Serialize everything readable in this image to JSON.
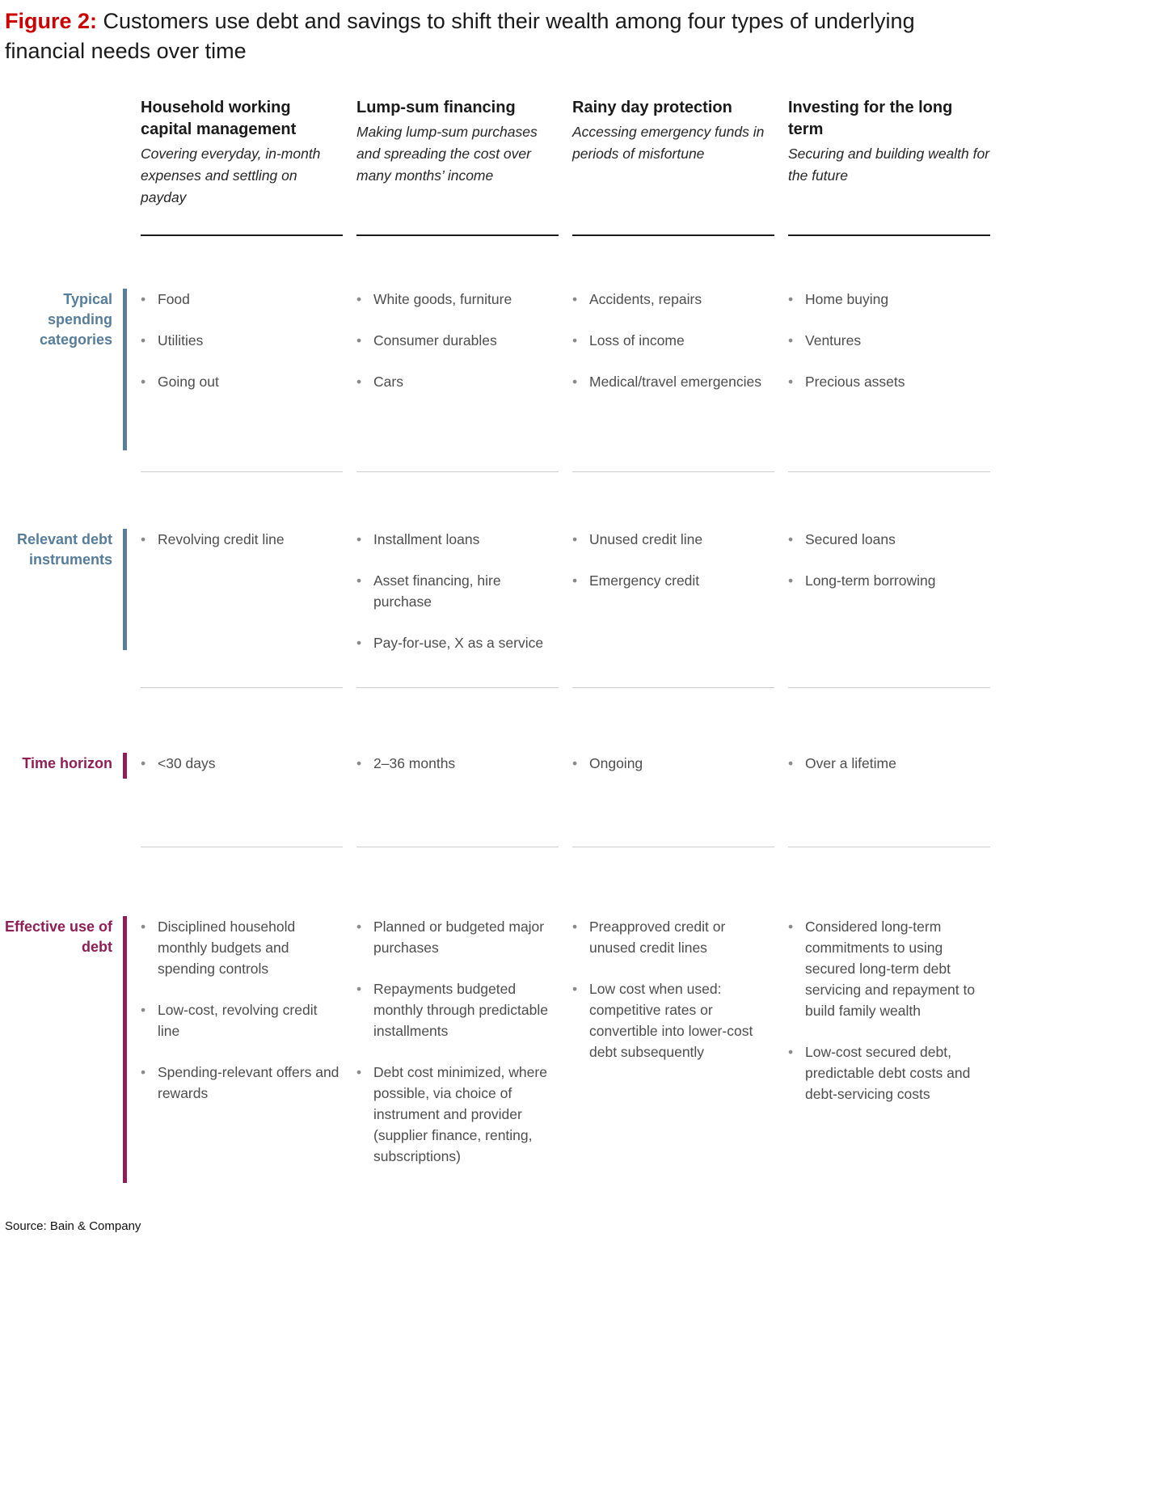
{
  "title": {
    "label": "Figure 2:",
    "text": "Customers use debt and savings to shift their wealth among four types of underlying financial needs over time"
  },
  "columns": [
    {
      "title": "Household working capital management",
      "subtitle": "Covering everyday, in-month expenses and settling on payday"
    },
    {
      "title": "Lump-sum financing",
      "subtitle": "Making lump-sum purchases and spreading the cost over many months’ income"
    },
    {
      "title": "Rainy day protection",
      "subtitle": "Accessing emergency funds in periods of misfortune"
    },
    {
      "title": "Investing for the long term",
      "subtitle": "Securing and building wealth for the future"
    }
  ],
  "rows": [
    {
      "label": "Typical spending categories",
      "cells": [
        [
          "Food",
          "Utilities",
          "Going out"
        ],
        [
          "White goods, furniture",
          "Consumer durables",
          "Cars"
        ],
        [
          "Accidents, repairs",
          "Loss of income",
          "Medical/travel emergencies"
        ],
        [
          "Home buying",
          "Ventures",
          "Precious assets"
        ]
      ]
    },
    {
      "label": "Relevant debt instruments",
      "cells": [
        [
          "Revolving credit line"
        ],
        [
          "Installment loans",
          "Asset financing, hire purchase",
          "Pay-for-use, X as a service"
        ],
        [
          "Unused credit line",
          "Emergency credit"
        ],
        [
          "Secured loans",
          "Long-term borrowing"
        ]
      ]
    },
    {
      "label": "Time horizon",
      "cells": [
        [
          "<30 days"
        ],
        [
          "2–36 months"
        ],
        [
          "Ongoing"
        ],
        [
          "Over a lifetime"
        ]
      ]
    },
    {
      "label": "Effective use of debt",
      "cells": [
        [
          "Disciplined household monthly budgets and spending controls",
          "Low-cost, revolving credit line",
          "Spending-relevant offers and rewards"
        ],
        [
          "Planned or budgeted major purchases",
          "Repayments budgeted monthly through predictable installments",
          "Debt cost minimized, where possible, via choice of instrument and provider (supplier finance, renting, subscriptions)"
        ],
        [
          "Preapproved credit or unused credit lines",
          "Low cost when used: competitive rates or convertible into lower-cost debt subsequently"
        ],
        [
          "Considered long-term commitments to using secured long-term debt servicing and repayment to build family wealth",
          "Low-cost secured debt, predictable debt costs and debt-servicing costs"
        ]
      ]
    }
  ],
  "source": "Source: Bain & Company",
  "colors": {
    "accent_red": "#cc0000",
    "category_blue": "#567d99",
    "category_magenta": "#8e1e56"
  }
}
